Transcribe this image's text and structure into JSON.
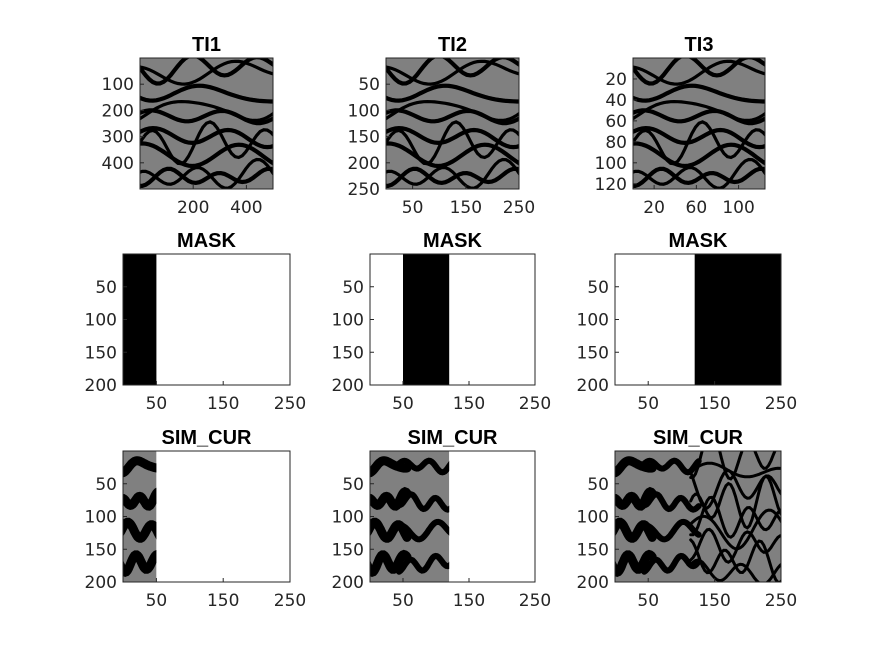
{
  "figure": {
    "background": "#ffffff",
    "colors": {
      "facies_background": "#808080",
      "channel": "#000000",
      "mask_empty": "#ffffff",
      "mask_filled": "#000000",
      "axis_line": "#262626"
    }
  },
  "chart_data": [
    {
      "id": "ti1",
      "type": "heatmap",
      "title": "TI1",
      "content": "training-image",
      "columns": 500,
      "rows": 500,
      "xticks": [
        200,
        400
      ],
      "yticks": [
        100,
        200,
        300,
        400
      ],
      "xlim": [
        0,
        500
      ],
      "ylim": [
        500,
        0
      ]
    },
    {
      "id": "ti2",
      "type": "heatmap",
      "title": "TI2",
      "content": "training-image",
      "columns": 250,
      "rows": 250,
      "xticks": [
        50,
        150,
        250
      ],
      "yticks": [
        50,
        100,
        150,
        200,
        250
      ],
      "xlim": [
        0,
        250
      ],
      "ylim": [
        250,
        0
      ]
    },
    {
      "id": "ti3",
      "type": "heatmap",
      "title": "TI3",
      "content": "training-image",
      "columns": 125,
      "rows": 125,
      "xticks": [
        20,
        60,
        100
      ],
      "yticks": [
        20,
        40,
        60,
        80,
        100,
        120
      ],
      "xlim": [
        0,
        125
      ],
      "ylim": [
        125,
        0
      ]
    },
    {
      "id": "mask1",
      "type": "heatmap",
      "title": "MASK",
      "content": "mask",
      "filled_columns": [
        0,
        50
      ],
      "columns": 250,
      "rows": 200,
      "xticks": [
        50,
        150,
        250
      ],
      "yticks": [
        50,
        100,
        150,
        200
      ],
      "xlim": [
        0,
        250
      ],
      "ylim": [
        200,
        0
      ]
    },
    {
      "id": "mask2",
      "type": "heatmap",
      "title": "MASK",
      "content": "mask",
      "filled_columns": [
        50,
        120
      ],
      "columns": 250,
      "rows": 200,
      "xticks": [
        50,
        150,
        250
      ],
      "yticks": [
        50,
        100,
        150,
        200
      ],
      "xlim": [
        0,
        250
      ],
      "ylim": [
        200,
        0
      ]
    },
    {
      "id": "mask3",
      "type": "heatmap",
      "title": "MASK",
      "content": "mask",
      "filled_columns": [
        120,
        250
      ],
      "columns": 250,
      "rows": 200,
      "xticks": [
        50,
        150,
        250
      ],
      "yticks": [
        50,
        100,
        150,
        200
      ],
      "xlim": [
        0,
        250
      ],
      "ylim": [
        200,
        0
      ]
    },
    {
      "id": "sim1",
      "type": "heatmap",
      "title": "SIM_CUR",
      "content": "simulation",
      "simulated_columns": [
        0,
        50
      ],
      "columns": 250,
      "rows": 200,
      "xticks": [
        50,
        150,
        250
      ],
      "yticks": [
        50,
        100,
        150,
        200
      ],
      "xlim": [
        0,
        250
      ],
      "ylim": [
        200,
        0
      ]
    },
    {
      "id": "sim2",
      "type": "heatmap",
      "title": "SIM_CUR",
      "content": "simulation",
      "simulated_columns": [
        0,
        120
      ],
      "columns": 250,
      "rows": 200,
      "xticks": [
        50,
        150,
        250
      ],
      "yticks": [
        50,
        100,
        150,
        200
      ],
      "xlim": [
        0,
        250
      ],
      "ylim": [
        200,
        0
      ]
    },
    {
      "id": "sim3",
      "type": "heatmap",
      "title": "SIM_CUR",
      "content": "simulation",
      "simulated_columns": [
        0,
        250
      ],
      "columns": 250,
      "rows": 200,
      "xticks": [
        50,
        150,
        250
      ],
      "yticks": [
        50,
        100,
        150,
        200
      ],
      "xlim": [
        0,
        250
      ],
      "ylim": [
        200,
        0
      ]
    }
  ]
}
